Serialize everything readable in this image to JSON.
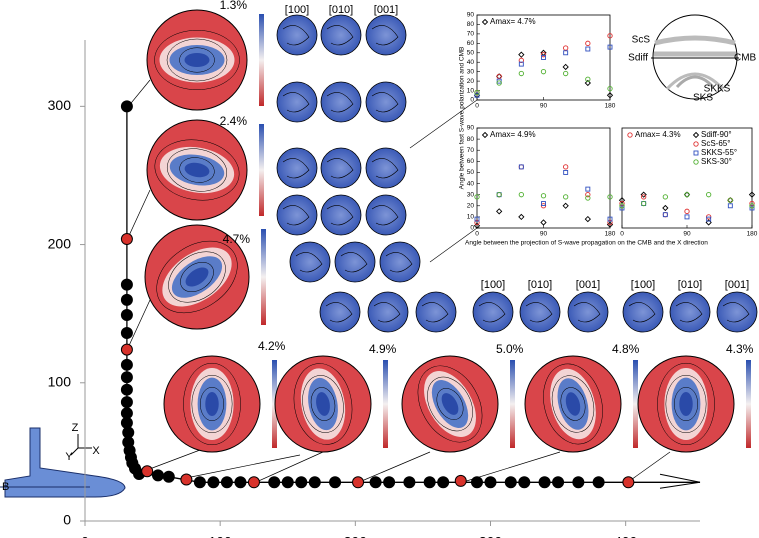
{
  "chart_data": [
    {
      "type": "scatter",
      "xlim": [
        0,
        455
      ],
      "ylim": [
        0,
        348
      ],
      "xticks": [
        0,
        100,
        200,
        300,
        400
      ],
      "yticks": [
        0,
        100,
        200,
        300
      ],
      "annotations": [
        "Z",
        "Y",
        "X",
        "B"
      ],
      "series": [
        {
          "color": "#000000",
          "x": [
            31,
            31,
            31,
            31,
            31,
            31,
            31,
            31,
            31,
            31,
            31,
            32,
            32,
            33,
            34,
            35,
            37,
            40,
            54,
            62,
            85,
            95,
            105,
            115,
            140,
            150,
            160,
            170,
            185,
            215,
            225,
            240,
            255,
            265,
            290,
            300,
            315,
            325,
            340,
            350,
            365,
            380
          ],
          "values": [
            300,
            171,
            160,
            149,
            136,
            113,
            104,
            95,
            86,
            78,
            71,
            64,
            57,
            51,
            46,
            42,
            38,
            34,
            33,
            32,
            28,
            28,
            28,
            28,
            28,
            28,
            28,
            28,
            28,
            28,
            28,
            28,
            28,
            28,
            28,
            28,
            28,
            28,
            28,
            28,
            28,
            28
          ]
        },
        {
          "color": "#d8322b",
          "x": [
            31,
            31,
            46,
            75,
            125,
            202,
            278,
            402
          ],
          "values": [
            204,
            124,
            36,
            30,
            28,
            28,
            29,
            28
          ]
        }
      ]
    },
    {
      "type": "scatter",
      "annotation": "Amax= 4.7%",
      "xlim": [
        0,
        180
      ],
      "ylim": [
        0,
        90
      ],
      "xticks": [
        0,
        90,
        180
      ],
      "yticks": [
        0,
        10,
        20,
        30,
        40,
        50,
        60,
        70,
        80,
        90
      ],
      "x": [
        0,
        30,
        60,
        90,
        120,
        150,
        180
      ],
      "series": [
        {
          "color": "#000000",
          "marker": "diamond",
          "values": [
            5,
            25,
            48,
            50,
            35,
            18,
            5
          ]
        },
        {
          "color": "#e03030",
          "marker": "circle",
          "values": [
            8,
            25,
            42,
            48,
            55,
            60,
            68
          ]
        },
        {
          "color": "#3050c0",
          "marker": "square",
          "values": [
            5,
            20,
            38,
            45,
            50,
            54,
            56
          ]
        },
        {
          "color": "#50b030",
          "marker": "circle",
          "values": [
            8,
            18,
            28,
            30,
            28,
            22,
            12
          ]
        }
      ]
    },
    {
      "type": "scatter",
      "annotation": "Amax= 4.9%",
      "ylabel": "Angle between fast S-wave polarization and CMB",
      "xlabel": "Angle between the projection of S-wave propagation on the CMB and the X direction",
      "xlim": [
        0,
        180
      ],
      "ylim": [
        0,
        90
      ],
      "xticks": [
        0,
        90,
        180
      ],
      "yticks": [
        0,
        10,
        20,
        30,
        40,
        50,
        60,
        70,
        80,
        90
      ],
      "x": [
        0,
        30,
        60,
        90,
        120,
        150,
        180
      ],
      "series": [
        {
          "color": "#000000",
          "marker": "diamond",
          "values": [
            2,
            15,
            10,
            5,
            20,
            8,
            3
          ]
        },
        {
          "color": "#e03030",
          "marker": "circle",
          "values": [
            5,
            30,
            55,
            20,
            55,
            30,
            5
          ]
        },
        {
          "color": "#3050c0",
          "marker": "square",
          "values": [
            8,
            30,
            55,
            22,
            50,
            35,
            8
          ]
        },
        {
          "color": "#50b030",
          "marker": "circle",
          "values": [
            28,
            30,
            30,
            29,
            28,
            27,
            28
          ]
        }
      ]
    },
    {
      "type": "scatter",
      "annotation": "Amax= 4.3%",
      "xlim": [
        0,
        180
      ],
      "ylim": [
        0,
        90
      ],
      "xticks": [
        0,
        90,
        180
      ],
      "x": [
        0,
        30,
        60,
        90,
        120,
        150,
        180
      ],
      "series": [
        {
          "name": "Sdiff-90°",
          "color": "#000000",
          "marker": "diamond",
          "values": [
            25,
            30,
            18,
            30,
            5,
            25,
            30
          ]
        },
        {
          "name": "ScS-65°",
          "color": "#e03030",
          "marker": "circle",
          "values": [
            22,
            28,
            12,
            15,
            10,
            25,
            22
          ]
        },
        {
          "name": "SKKS-55°",
          "color": "#3050c0",
          "marker": "square",
          "values": [
            18,
            22,
            12,
            10,
            8,
            20,
            18
          ]
        },
        {
          "name": "SKS-30°",
          "color": "#50b030",
          "marker": "circle",
          "values": [
            20,
            22,
            28,
            30,
            30,
            25,
            20
          ]
        }
      ]
    }
  ],
  "pole_figures": {
    "max_density": [
      "1.3%",
      "2.4%",
      "4.7%",
      "4.2%",
      "4.9%",
      "5.0%",
      "4.8%",
      "4.3%"
    ],
    "axes_top": [
      "[100]",
      "[010]",
      "[001]"
    ],
    "axes_mid": [
      "[100]",
      "[010]",
      "[001]"
    ],
    "axes_right": [
      "[100]",
      "[010]",
      "[001]"
    ]
  },
  "diagram": {
    "labels": [
      "ScS",
      "Sdiff",
      "CMB",
      "SKKS",
      "SKS"
    ]
  }
}
